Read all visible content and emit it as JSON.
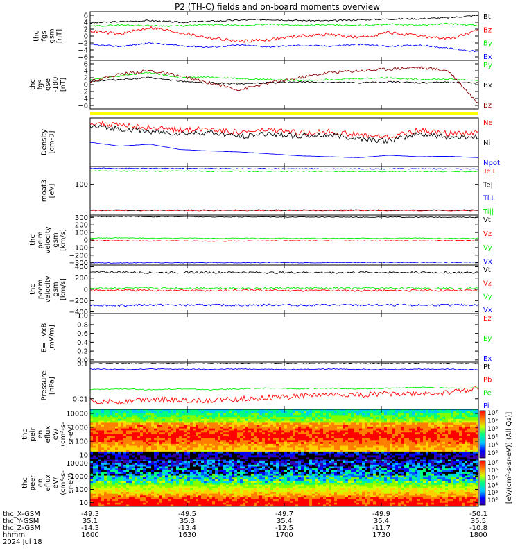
{
  "title": "P2 (TH-C) fields and on-board moments overview",
  "colors": {
    "black": "#000000",
    "red": "#ff0000",
    "green": "#00ee00",
    "blue": "#0000ff",
    "darkred": "#8b0000",
    "yellow": "#ffff00"
  },
  "chart_data": [
    {
      "type": "line",
      "ylabel": [
        "thc",
        "fgs",
        "gsm",
        "[nT]"
      ],
      "ylim": [
        -7,
        7
      ],
      "yticks": [
        "6",
        "4",
        "2",
        "0",
        "−2",
        "−4",
        "−6"
      ],
      "series": [
        {
          "name": "Bt",
          "color": "black",
          "values": [
            3.8,
            4.2,
            4.5,
            4.0,
            4.3,
            4.6,
            4.8,
            4.5,
            4.4,
            4.7,
            4.9,
            5.0,
            5.3,
            6.0
          ]
        },
        {
          "name": "Bz",
          "color": "red",
          "values": [
            1.5,
            0.5,
            2.5,
            1.0,
            -0.5,
            -1.5,
            -1.0,
            0.0,
            0.5,
            -0.5,
            1.0,
            0.0,
            -0.8,
            1.5
          ]
        },
        {
          "name": "By",
          "color": "green",
          "values": [
            2.8,
            3.2,
            3.0,
            2.9,
            3.3,
            3.0,
            3.4,
            3.1,
            3.2,
            3.0,
            3.5,
            3.1,
            3.6,
            3.0
          ]
        },
        {
          "name": "Bx",
          "color": "blue",
          "values": [
            -2.5,
            -3.0,
            -2.0,
            -2.8,
            -3.2,
            -2.6,
            -3.1,
            -2.7,
            -2.9,
            -2.4,
            -3.0,
            -2.6,
            -3.5,
            -4.5
          ]
        }
      ]
    },
    {
      "type": "line",
      "ylabel": [
        "thc",
        "fgs",
        "gse",
        "-180",
        "[nT]"
      ],
      "ylim": [
        -7,
        7
      ],
      "yticks": [
        "6",
        "4",
        "2",
        "0",
        "−2",
        "−4",
        "−6"
      ],
      "series": [
        {
          "name": "By",
          "color": "green",
          "values": [
            1.5,
            2.5,
            3.5,
            2.0,
            2.2,
            1.8,
            1.5,
            1.2,
            1.5,
            1.8,
            2.0,
            1.5,
            1.6,
            1.2
          ]
        },
        {
          "name": "Bx",
          "color": "black",
          "values": [
            1.0,
            1.5,
            2.0,
            1.0,
            0.5,
            0.3,
            0.5,
            0.8,
            0.6,
            0.5,
            0.8,
            0.5,
            0.7,
            0.5
          ]
        },
        {
          "name": "Bz",
          "color": "darkred",
          "values": [
            1.0,
            3.0,
            4.0,
            2.5,
            0.5,
            -1.5,
            0.5,
            2.0,
            3.5,
            4.0,
            4.5,
            5.0,
            4.0,
            -5.5
          ]
        }
      ]
    },
    {
      "type": "line",
      "ylabel": [
        "Density",
        "[cm-3]"
      ],
      "ylim": [
        0,
        10
      ],
      "yticks": [],
      "series": [
        {
          "name": "Ne",
          "color": "red",
          "values": [
            9.0,
            8.5,
            8.0,
            7.5,
            7.8,
            7.0,
            7.5,
            7.0,
            7.2,
            6.5,
            6.0,
            7.5,
            6.8,
            7.0
          ]
        },
        {
          "name": "Ni",
          "color": "black",
          "values": [
            8.2,
            7.8,
            7.2,
            6.8,
            7.0,
            6.2,
            6.8,
            6.2,
            6.5,
            5.8,
            5.2,
            6.8,
            6.0,
            6.2
          ]
        },
        {
          "name": "Npot",
          "color": "blue",
          "values": [
            5.0,
            4.2,
            4.6,
            3.5,
            3.2,
            3.0,
            2.6,
            2.2,
            2.0,
            1.8,
            2.3,
            2.0,
            2.1,
            1.8
          ]
        }
      ]
    },
    {
      "type": "line",
      "ylabel": [
        "moat3",
        "[eV]"
      ],
      "yscale": "log",
      "ylim": [
        15,
        300
      ],
      "yticks": [
        "100"
      ],
      "series": [
        {
          "name": "Te⊥",
          "color": "red",
          "values": [
            20,
            20,
            20,
            20,
            20,
            20,
            20,
            20,
            20,
            20,
            20,
            20,
            20,
            20
          ]
        },
        {
          "name": "Te||",
          "color": "black",
          "values": [
            20.5,
            20.5,
            20.5,
            20.5,
            20.5,
            20.5,
            20.5,
            20.5,
            20.5,
            20.5,
            20.5,
            20.5,
            20.5,
            20.5
          ]
        },
        {
          "name": "Ti⊥",
          "color": "blue",
          "values": [
            270,
            268,
            265,
            266,
            264,
            262,
            263,
            262,
            260,
            261,
            260,
            262,
            258,
            255
          ]
        },
        {
          "name": "Ti||",
          "color": "green",
          "values": [
            230,
            228,
            226,
            227,
            225,
            224,
            223,
            224,
            222,
            223,
            221,
            222,
            220,
            218
          ]
        }
      ]
    },
    {
      "type": "line",
      "ylabel": [
        "thc",
        "peim",
        "velocity",
        "gsm",
        "[km/s]"
      ],
      "ylim": [
        -330,
        330
      ],
      "yticks": [
        "300",
        "200",
        "100",
        "0",
        "−100",
        "−200",
        "−300"
      ],
      "series": [
        {
          "name": "Vt",
          "color": "black",
          "values": [
            310,
            312,
            308,
            310,
            305,
            307,
            306,
            304,
            305,
            303,
            304,
            302,
            303,
            300
          ]
        },
        {
          "name": "Vz",
          "color": "red",
          "values": [
            -10,
            -8,
            -12,
            -10,
            -15,
            -12,
            -10,
            -11,
            -9,
            -12,
            -10,
            -11,
            -8,
            -10
          ]
        },
        {
          "name": "Vy",
          "color": "green",
          "values": [
            25,
            28,
            22,
            25,
            20,
            24,
            22,
            23,
            21,
            24,
            22,
            25,
            20,
            22
          ]
        },
        {
          "name": "Vx",
          "color": "blue",
          "values": [
            -300,
            -302,
            -298,
            -300,
            -297,
            -299,
            -296,
            -298,
            -297,
            -295,
            -296,
            -294,
            -295,
            -293
          ]
        }
      ]
    },
    {
      "type": "line",
      "ylabel": [
        "thc",
        "peem",
        "velocity",
        "gsm",
        "[km/s]"
      ],
      "ylim": [
        -430,
        430
      ],
      "yticks": [
        "400",
        "200",
        "0",
        "−200",
        "−400"
      ],
      "series": [
        {
          "name": "Vt",
          "color": "black",
          "values": [
            300,
            305,
            295,
            300,
            298,
            302,
            296,
            300,
            297,
            301,
            299,
            300,
            298,
            296
          ]
        },
        {
          "name": "Vz",
          "color": "red",
          "values": [
            -20,
            -18,
            -22,
            -20,
            -25,
            -20,
            -18,
            -21,
            -19,
            -22,
            -20,
            -21,
            -18,
            -20
          ]
        },
        {
          "name": "Vy",
          "color": "green",
          "values": [
            20,
            22,
            18,
            20,
            22,
            19,
            21,
            20,
            19,
            21,
            20,
            22,
            19,
            21
          ]
        },
        {
          "name": "Vx",
          "color": "blue",
          "values": [
            -280,
            -285,
            -275,
            -280,
            -278,
            -282,
            -276,
            -280,
            -277,
            -281,
            -279,
            -280,
            -278,
            -276
          ]
        }
      ]
    },
    {
      "type": "line",
      "ylabel": [
        "E=−VxB",
        "[mV/m]"
      ],
      "ylim": [
        -0.05,
        1.05
      ],
      "yticks": [
        "1.0",
        "0.8",
        "0.6",
        "0.4",
        "0.2",
        "0.0"
      ],
      "series": [
        {
          "name": "Ez",
          "color": "red",
          "values": []
        },
        {
          "name": "Ey",
          "color": "green",
          "values": []
        },
        {
          "name": "Ex",
          "color": "blue",
          "values": []
        }
      ]
    },
    {
      "type": "line",
      "ylabel": [
        "Pressure",
        "[nPa]"
      ],
      "yscale": "log",
      "ylim": [
        0.005,
        0.11
      ],
      "yticks": [
        "0.1",
        "0.01"
      ],
      "series": [
        {
          "name": "Pt",
          "color": "black",
          "values": [
            0.1,
            0.1,
            0.1,
            0.1,
            0.1,
            0.1,
            0.1,
            0.1,
            0.1,
            0.1,
            0.1,
            0.1,
            0.1,
            0.1
          ]
        },
        {
          "name": "Pb",
          "color": "red",
          "values": [
            0.009,
            0.008,
            0.01,
            0.009,
            0.009,
            0.01,
            0.011,
            0.012,
            0.013,
            0.013,
            0.014,
            0.014,
            0.015,
            0.02
          ]
        },
        {
          "name": "Pe",
          "color": "green",
          "values": [
            0.018,
            0.019,
            0.018,
            0.019,
            0.018,
            0.019,
            0.02,
            0.019,
            0.02,
            0.019,
            0.02,
            0.021,
            0.02,
            0.02
          ]
        },
        {
          "name": "Pi",
          "color": "blue",
          "values": [
            0.07,
            0.068,
            0.07,
            0.069,
            0.068,
            0.07,
            0.069,
            0.068,
            0.07,
            0.069,
            0.068,
            0.07,
            0.069,
            0.067
          ]
        }
      ]
    },
    {
      "type": "heatmap",
      "ylabel": [
        "thc",
        "peir",
        "en",
        "eflux",
        "eV/",
        "(cm²-s-",
        "sr-eV)"
      ],
      "yscale": "log",
      "ylim": [
        5,
        20000
      ],
      "yticks": [
        "10000",
        "1000",
        "100",
        "10"
      ]
    },
    {
      "type": "heatmap",
      "ylabel": [
        "thc",
        "peer",
        "en",
        "eflux",
        "eV/",
        "(cm²-s-",
        "sr-eV)"
      ],
      "yscale": "log",
      "ylim": [
        5,
        20000
      ],
      "yticks": [
        "10000",
        "1000",
        "100",
        "10"
      ]
    }
  ],
  "colorbar": {
    "label": "[eV/(cm²-s-sr-eV)] (All Qs)]",
    "ticks_top": [
      "10⁷",
      "10⁶",
      "10⁵",
      "10⁴",
      "10³",
      "10²"
    ],
    "ticks_bottom": [
      "10⁷",
      "10⁶",
      "10⁵",
      "10⁴",
      "10³",
      "10²"
    ]
  },
  "xaxis": {
    "row_labels": [
      "thc_X-GSM",
      "thc_Y-GSM",
      "thc_Z-GSM",
      "hhmm",
      "2024 Jul 18"
    ],
    "columns": [
      [
        "-49.3",
        "35.1",
        "-14.3",
        "1600"
      ],
      [
        "-49.5",
        "35.3",
        "-13.4",
        "1630"
      ],
      [
        "-49.7",
        "35.4",
        "-12.5",
        "1700"
      ],
      [
        "-49.9",
        "35.4",
        "-11.7",
        "1730"
      ],
      [
        "-50.1",
        "35.5",
        "-10.8",
        "1800"
      ]
    ]
  }
}
